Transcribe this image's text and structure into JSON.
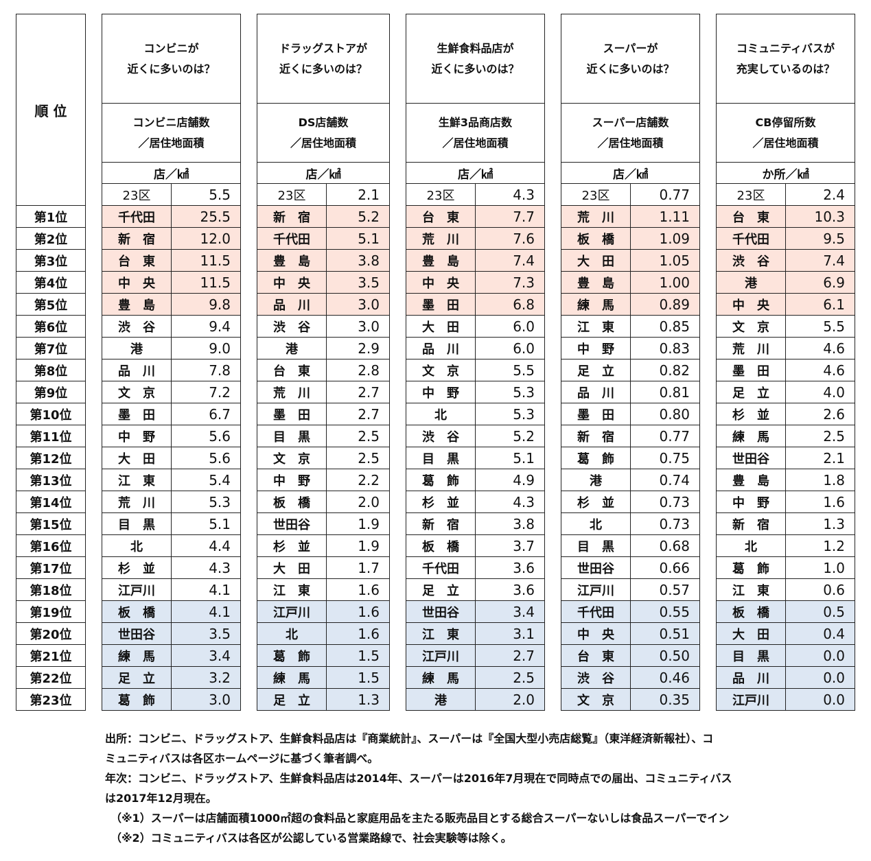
{
  "rank_header": "順 位",
  "ranks": [
    "第1位",
    "第2位",
    "第3位",
    "第4位",
    "第5位",
    "第6位",
    "第7位",
    "第8位",
    "第9位",
    "第10位",
    "第11位",
    "第12位",
    "第13位",
    "第14位",
    "第15位",
    "第16位",
    "第17位",
    "第18位",
    "第19位",
    "第20位",
    "第21位",
    "第22位",
    "第23位"
  ],
  "colors": {
    "top5": "#fde4dc",
    "bottom5": "#dde7f3"
  },
  "groups": [
    {
      "q1": "コンビニが",
      "q2": "近くに多いのは？",
      "m1": "コンビニ店舗数",
      "m2": "／居住地面積",
      "unit": "店／㎢",
      "avg_label": "23区",
      "avg": "5.5",
      "rows": [
        [
          "千代田",
          "25.5"
        ],
        [
          "新　宿",
          "12.0"
        ],
        [
          "台　東",
          "11.5"
        ],
        [
          "中　央",
          "11.5"
        ],
        [
          "豊　島",
          "9.8"
        ],
        [
          "渋　谷",
          "9.4"
        ],
        [
          "港",
          "9.0"
        ],
        [
          "品　川",
          "7.8"
        ],
        [
          "文　京",
          "7.2"
        ],
        [
          "墨　田",
          "6.7"
        ],
        [
          "中　野",
          "5.6"
        ],
        [
          "大　田",
          "5.6"
        ],
        [
          "江　東",
          "5.4"
        ],
        [
          "荒　川",
          "5.3"
        ],
        [
          "目　黒",
          "5.1"
        ],
        [
          "北",
          "4.4"
        ],
        [
          "杉　並",
          "4.3"
        ],
        [
          "江戸川",
          "4.1"
        ],
        [
          "板　橋",
          "4.1"
        ],
        [
          "世田谷",
          "3.5"
        ],
        [
          "練　馬",
          "3.4"
        ],
        [
          "足　立",
          "3.2"
        ],
        [
          "葛　飾",
          "3.0"
        ]
      ]
    },
    {
      "q1": "ドラッグストアが",
      "q2": "近くに多いのは？",
      "m1": "DS店舗数",
      "m2": "／居住地面積",
      "unit": "店／㎢",
      "avg_label": "23区",
      "avg": "2.1",
      "rows": [
        [
          "新　宿",
          "5.2"
        ],
        [
          "千代田",
          "5.1"
        ],
        [
          "豊　島",
          "3.8"
        ],
        [
          "中　央",
          "3.5"
        ],
        [
          "品　川",
          "3.0"
        ],
        [
          "渋　谷",
          "3.0"
        ],
        [
          "港",
          "2.9"
        ],
        [
          "台　東",
          "2.8"
        ],
        [
          "荒　川",
          "2.7"
        ],
        [
          "墨　田",
          "2.7"
        ],
        [
          "目　黒",
          "2.5"
        ],
        [
          "文　京",
          "2.5"
        ],
        [
          "中　野",
          "2.2"
        ],
        [
          "板　橋",
          "2.0"
        ],
        [
          "世田谷",
          "1.9"
        ],
        [
          "杉　並",
          "1.9"
        ],
        [
          "大　田",
          "1.7"
        ],
        [
          "江　東",
          "1.6"
        ],
        [
          "江戸川",
          "1.6"
        ],
        [
          "北",
          "1.6"
        ],
        [
          "葛　飾",
          "1.5"
        ],
        [
          "練　馬",
          "1.5"
        ],
        [
          "足　立",
          "1.3"
        ]
      ]
    },
    {
      "q1": "生鮮食料品店が",
      "q2": "近くに多いのは？",
      "m1": "生鮮3品商店数",
      "m2": "／居住地面積",
      "unit": "店／㎢",
      "avg_label": "23区",
      "avg": "4.3",
      "rows": [
        [
          "台　東",
          "7.7"
        ],
        [
          "荒　川",
          "7.6"
        ],
        [
          "豊　島",
          "7.4"
        ],
        [
          "中　央",
          "7.3"
        ],
        [
          "墨　田",
          "6.8"
        ],
        [
          "大　田",
          "6.0"
        ],
        [
          "品　川",
          "6.0"
        ],
        [
          "文　京",
          "5.5"
        ],
        [
          "中　野",
          "5.3"
        ],
        [
          "北",
          "5.3"
        ],
        [
          "渋　谷",
          "5.2"
        ],
        [
          "目　黒",
          "5.1"
        ],
        [
          "葛　飾",
          "4.9"
        ],
        [
          "杉　並",
          "4.3"
        ],
        [
          "新　宿",
          "3.8"
        ],
        [
          "板　橋",
          "3.7"
        ],
        [
          "千代田",
          "3.6"
        ],
        [
          "足　立",
          "3.6"
        ],
        [
          "世田谷",
          "3.4"
        ],
        [
          "江　東",
          "3.1"
        ],
        [
          "江戸川",
          "2.7"
        ],
        [
          "練　馬",
          "2.5"
        ],
        [
          "港",
          "2.0"
        ]
      ]
    },
    {
      "q1": "スーパーが",
      "q2": "近くに多いのは？",
      "m1": "スーパー店舗数",
      "m2": "／居住地面積",
      "unit": "店／㎢",
      "avg_label": "23区",
      "avg": "0.77",
      "rows": [
        [
          "荒　川",
          "1.11"
        ],
        [
          "板　橋",
          "1.09"
        ],
        [
          "大　田",
          "1.05"
        ],
        [
          "豊　島",
          "1.00"
        ],
        [
          "練　馬",
          "0.89"
        ],
        [
          "江　東",
          "0.85"
        ],
        [
          "中　野",
          "0.83"
        ],
        [
          "足　立",
          "0.82"
        ],
        [
          "品　川",
          "0.81"
        ],
        [
          "墨　田",
          "0.80"
        ],
        [
          "新　宿",
          "0.77"
        ],
        [
          "葛　飾",
          "0.75"
        ],
        [
          "港",
          "0.74"
        ],
        [
          "杉　並",
          "0.73"
        ],
        [
          "北",
          "0.73"
        ],
        [
          "目　黒",
          "0.68"
        ],
        [
          "世田谷",
          "0.66"
        ],
        [
          "江戸川",
          "0.57"
        ],
        [
          "千代田",
          "0.55"
        ],
        [
          "中　央",
          "0.51"
        ],
        [
          "台　東",
          "0.50"
        ],
        [
          "渋　谷",
          "0.46"
        ],
        [
          "文　京",
          "0.35"
        ]
      ]
    },
    {
      "q1": "コミュニティバスが",
      "q2": "充実しているのは？",
      "m1": "CB停留所数",
      "m2": "／居住地面積",
      "unit": "か所／㎢",
      "avg_label": "23区",
      "avg": "2.4",
      "rows": [
        [
          "台　東",
          "10.3"
        ],
        [
          "千代田",
          "9.5"
        ],
        [
          "渋　谷",
          "7.4"
        ],
        [
          "港",
          "6.9"
        ],
        [
          "中　央",
          "6.1"
        ],
        [
          "文　京",
          "5.5"
        ],
        [
          "荒　川",
          "4.6"
        ],
        [
          "墨　田",
          "4.6"
        ],
        [
          "足　立",
          "4.0"
        ],
        [
          "杉　並",
          "2.6"
        ],
        [
          "練　馬",
          "2.5"
        ],
        [
          "世田谷",
          "2.1"
        ],
        [
          "豊　島",
          "1.8"
        ],
        [
          "中　野",
          "1.6"
        ],
        [
          "新　宿",
          "1.3"
        ],
        [
          "北",
          "1.2"
        ],
        [
          "葛　飾",
          "1.0"
        ],
        [
          "江　東",
          "0.6"
        ],
        [
          "板　橋",
          "0.5"
        ],
        [
          "大　田",
          "0.4"
        ],
        [
          "目　黒",
          "0.0"
        ],
        [
          "品　川",
          "0.0"
        ],
        [
          "江戸川",
          "0.0"
        ]
      ]
    }
  ],
  "notes": [
    "出所：コンビニ、ドラッグストア、生鮮食料品店は『商業統計』、スーパーは『全国大型小売店総覧』（東洋経済新報社）、コ",
    "ミュニティバスは各区ホームページに基づく筆者調べ。",
    "年次：コンビニ、ドラッグストア、生鮮食料品店は2014年、スーパーは2016年7月現在で同時点での届出、コミュニティバス",
    "は2017年12月現在。",
    "（※1）スーパーは店舗面積1000㎡超の食料品と家庭用品を主たる販売品目とする総合スーパーないしは食品スーパーでイン",
    "（※2）コミュニティバスは各区が公認している営業路線で、社会実験等は除く。"
  ]
}
